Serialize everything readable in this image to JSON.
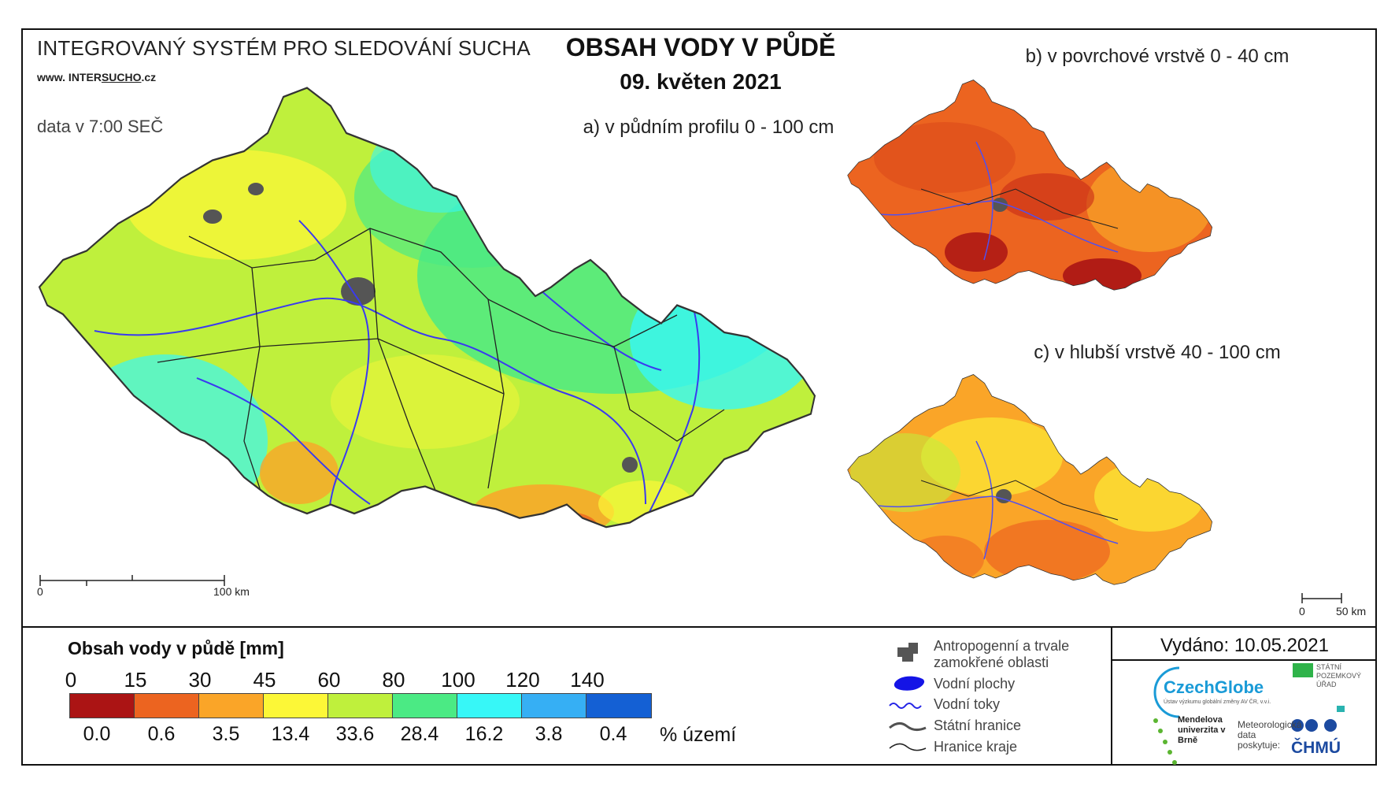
{
  "header": {
    "system_title": "INTEGROVANÝ SYSTÉM PRO SLEDOVÁNÍ SUCHA",
    "website_prefix": "www. INTER",
    "website_underlined": "SUCHO",
    "website_suffix": ".cz",
    "data_time": "data v 7:00 SEČ",
    "main_title": "OBSAH VODY V PŮDĚ",
    "date": "09. květen 2021"
  },
  "maps": {
    "a_caption": "a) v půdním profilu 0 - 100 cm",
    "b_caption": "b) v povrchové vrstvě 0 - 40 cm",
    "c_caption": "c) v hlubší vrstvě 40 - 100 cm",
    "scale_main_start": "0",
    "scale_main_end": "100 km",
    "scale_small_start": "0",
    "scale_small_end": "50 km"
  },
  "legend": {
    "title": "Obsah vody v půdě  [mm]",
    "thresholds": [
      "0",
      "15",
      "30",
      "45",
      "60",
      "80",
      "100",
      "120",
      "140"
    ],
    "classes": [
      {
        "color": "#ab1414",
        "percent": "0.0"
      },
      {
        "color": "#ec6420",
        "percent": "0.6"
      },
      {
        "color": "#faa528",
        "percent": "3.5"
      },
      {
        "color": "#fcf737",
        "percent": "13.4"
      },
      {
        "color": "#bff03c",
        "percent": "33.6"
      },
      {
        "color": "#4bea84",
        "percent": "28.4"
      },
      {
        "color": "#37f7f7",
        "percent": "16.2"
      },
      {
        "color": "#36aff4",
        "percent": "3.8"
      },
      {
        "color": "#1460d4",
        "percent": "0.4"
      }
    ],
    "percent_unit": "% území",
    "symbols": {
      "anthropogenic": "Antropogenní a trvale zamokřené oblasti",
      "water_bodies": "Vodní plochy",
      "streams": "Vodní toky",
      "state_border": "Státní hranice",
      "region_border": "Hranice kraje"
    }
  },
  "footer": {
    "issued": "Vydáno: 10.05.2021",
    "logos": {
      "czechglobe": "CzechGlobe",
      "czechglobe_sub": "Ústav výzkumu globální změny AV ČR, v.v.i.",
      "spu": "STÁTNÍ POZEMKOVÝ ÚŘAD",
      "mendel": "Mendelova univerzita v Brně",
      "meteo": "Meteorologická data poskytuje:",
      "chmu": "ČHMÚ"
    }
  },
  "colors": {
    "border": "#111111",
    "river": "#3a3af0",
    "urban": "#555555"
  }
}
